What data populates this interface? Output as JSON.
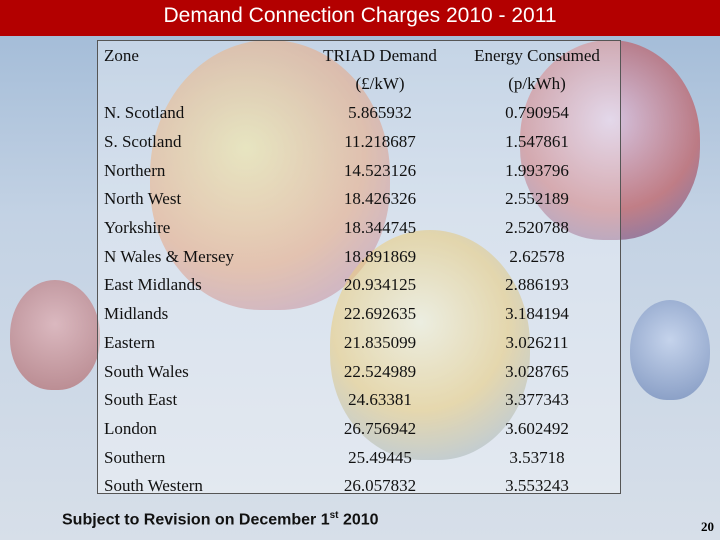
{
  "title": "Demand Connection Charges 2010 - 2011",
  "table": {
    "headers": {
      "zone": "Zone",
      "triad_line1": "TRIAD Demand",
      "triad_line2": "(£/kW)",
      "energy_line1": "Energy Consumed",
      "energy_line2": "(p/kWh)"
    },
    "rows": [
      [
        "N. Scotland",
        "5.865932",
        "0.790954"
      ],
      [
        "S. Scotland",
        "11.218687",
        "1.547861"
      ],
      [
        "Northern",
        "14.523126",
        "1.993796"
      ],
      [
        "North West",
        "18.426326",
        "2.552189"
      ],
      [
        "Yorkshire",
        "18.344745",
        "2.520788"
      ],
      [
        "N Wales & Mersey",
        "18.891869",
        "2.62578"
      ],
      [
        "East Midlands",
        "20.934125",
        "2.886193"
      ],
      [
        "Midlands",
        "22.692635",
        "3.184194"
      ],
      [
        "Eastern",
        "21.835099",
        "3.026211"
      ],
      [
        "South Wales",
        "22.524989",
        "3.028765"
      ],
      [
        "South East",
        "24.63381",
        "3.377343"
      ],
      [
        "London",
        "26.756942",
        "3.602492"
      ],
      [
        "Southern",
        "25.49445",
        "3.53718"
      ],
      [
        "South Western",
        "26.057832",
        "3.553243"
      ]
    ]
  },
  "footer": {
    "text": "Subject to Revision on December 1",
    "sup": "st",
    "year": " 2010"
  },
  "page_number": "20"
}
